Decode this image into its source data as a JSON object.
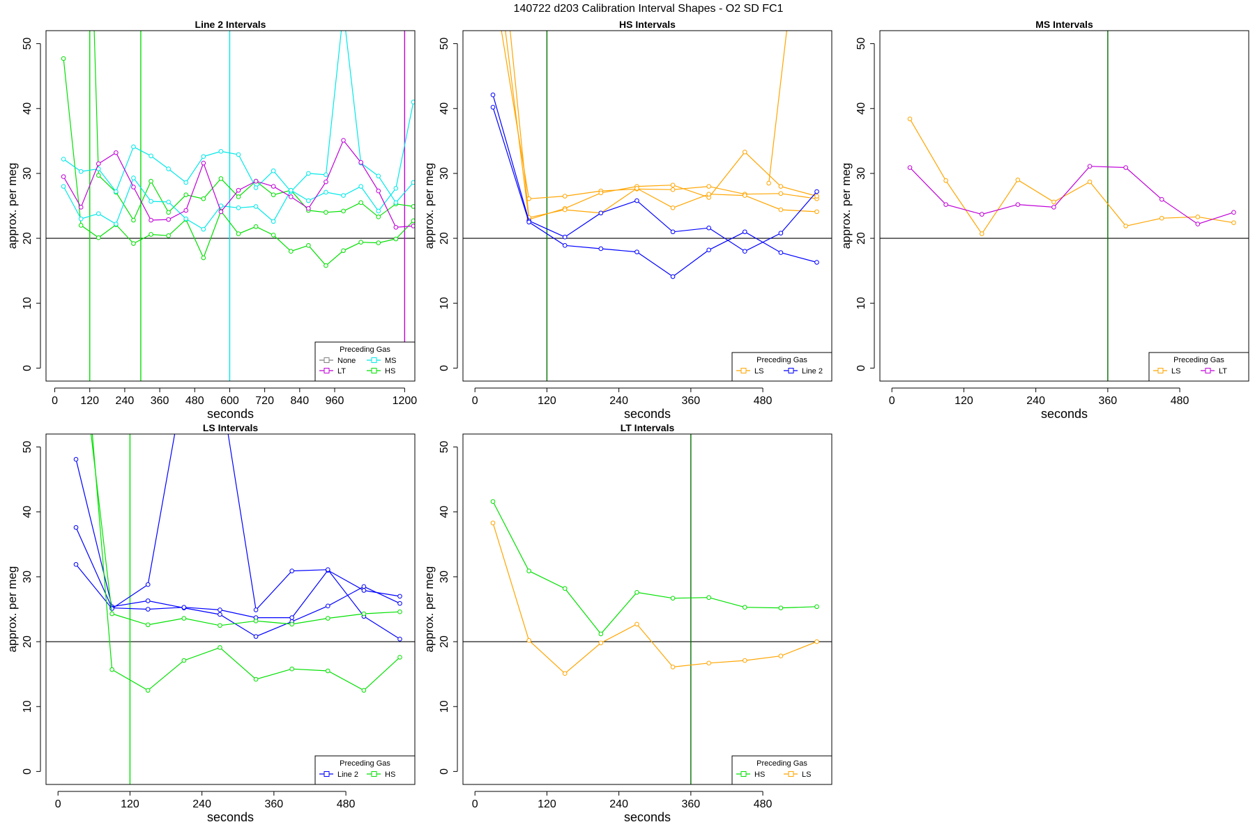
{
  "figure_title": "140722   d203   Calibration Interval Shapes - O2 SD FC1",
  "colors": {
    "Line 2": "#0000ff",
    "HS": "#00e000",
    "MS": "#00e8e8",
    "LS": "#ffa500",
    "LT": "#c000d8",
    "None": "#808080",
    "vline_dark": "#007000",
    "ref": "#000000"
  },
  "chart_data": [
    {
      "type": "line",
      "title": "Line 2 Intervals",
      "xlabel": "seconds",
      "ylabel": "approx. per meg",
      "xlim": [
        -30,
        1235
      ],
      "ylim": [
        -2,
        52
      ],
      "xticks": [
        0,
        120,
        240,
        360,
        480,
        600,
        720,
        840,
        960,
        1200
      ],
      "yticks": [
        0,
        10,
        20,
        30,
        40,
        50
      ],
      "hline": 20,
      "vlines": [
        {
          "x": 120,
          "color": "HS"
        },
        {
          "x": 295,
          "color": "HS"
        },
        {
          "x": 600,
          "color": "MS"
        },
        {
          "x": 1200,
          "color": "LT"
        }
      ],
      "legend": {
        "title": "Preceding Gas",
        "position": "bottom-right",
        "cols": 2,
        "entries": [
          "None",
          "LT",
          "MS",
          "HS"
        ]
      },
      "series": [
        {
          "name": "HS",
          "x": [
            30,
            90,
            150,
            210,
            270,
            330,
            390,
            450,
            510,
            570,
            630,
            690,
            750,
            810,
            870,
            930,
            990,
            1050,
            1110,
            1170,
            1230
          ],
          "y": [
            47.7,
            22,
            20.1,
            22.1,
            19.2,
            20.6,
            20.4,
            22.9,
            17,
            24.2,
            20.7,
            21.8,
            20.5,
            18,
            18.9,
            15.8,
            18.1,
            19.4,
            19.3,
            19.9,
            22.7
          ]
        },
        {
          "name": "HS",
          "x": [
            130,
            150,
            210,
            270,
            330,
            390,
            450,
            510,
            570,
            630,
            690,
            750,
            810,
            870,
            930,
            990,
            1050,
            1110,
            1170,
            1230
          ],
          "y": [
            60,
            29.7,
            27.1,
            22.8,
            28.8,
            24,
            26.7,
            26.1,
            29.2,
            26.4,
            28.8,
            26.7,
            27.4,
            24.3,
            24,
            24.2,
            25.5,
            23.3,
            25.3,
            24.9
          ]
        },
        {
          "name": "MS",
          "x": [
            30,
            90,
            150,
            210,
            270,
            330,
            390,
            450,
            510,
            570,
            630,
            690,
            750,
            810,
            870,
            930,
            990,
            1050,
            1110,
            1170,
            1230
          ],
          "y": [
            32.2,
            30.3,
            30.7,
            27.2,
            34.1,
            32.7,
            30.7,
            28.6,
            32.6,
            33.4,
            32.9,
            27.8,
            30.4,
            27.2,
            30,
            29.8,
            55,
            31.6,
            29.6,
            25.5,
            28.6
          ]
        },
        {
          "name": "MS",
          "x": [
            30,
            90,
            150,
            210,
            270,
            330,
            390,
            450,
            510,
            570,
            630,
            690,
            750,
            810,
            870,
            930,
            990,
            1050,
            1110,
            1170,
            1230
          ],
          "y": [
            28,
            23,
            23.8,
            22.2,
            29.3,
            25.7,
            25.6,
            23,
            21.4,
            25,
            24.7,
            24.9,
            22.6,
            27.4,
            25.8,
            27.1,
            26.6,
            28,
            24.2,
            27.7,
            41
          ]
        },
        {
          "name": "LT",
          "x": [
            30,
            90,
            150,
            210,
            270,
            330,
            390,
            450,
            510,
            570,
            630,
            690,
            750,
            810,
            870,
            930,
            990,
            1050,
            1110,
            1170,
            1230
          ],
          "y": [
            29.5,
            24.8,
            31.5,
            33.2,
            27.9,
            22.8,
            22.9,
            24.3,
            31.6,
            24.1,
            27.4,
            28.8,
            28,
            26.4,
            24.6,
            28.7,
            35.1,
            31.7,
            27.3,
            21.7,
            21.9
          ]
        }
      ]
    },
    {
      "type": "line",
      "title": "HS Intervals",
      "xlabel": "seconds",
      "ylabel": "approx. per meg",
      "xlim": [
        -20,
        595
      ],
      "ylim": [
        -2,
        52
      ],
      "xticks": [
        0,
        120,
        240,
        360,
        480
      ],
      "yticks": [
        0,
        10,
        20,
        30,
        40,
        50
      ],
      "hline": 20,
      "vlines": [
        {
          "x": 120,
          "color": "vline_dark"
        }
      ],
      "legend": {
        "title": "Preceding Gas",
        "position": "bottom-right",
        "cols": 2,
        "entries": [
          "LS",
          "Line 2"
        ]
      },
      "series": [
        {
          "name": "LS",
          "x": [
            30,
            90,
            150,
            210,
            270,
            330,
            390,
            450,
            510,
            570
          ],
          "y": [
            60,
            26.1,
            26.5,
            27.3,
            27.6,
            27.5,
            28,
            26.8,
            26.9,
            26.1
          ]
        },
        {
          "name": "LS",
          "x": [
            40,
            90,
            150,
            210,
            270,
            330,
            390,
            450,
            510,
            570
          ],
          "y": [
            60,
            22.9,
            24.6,
            27,
            28,
            28.2,
            26.3,
            33.3,
            28,
            26.5
          ]
        },
        {
          "name": "LS",
          "x": [
            50,
            90,
            150,
            210,
            270,
            330,
            390,
            450,
            510,
            570
          ],
          "y": [
            60,
            23.2,
            24.4,
            23.9,
            27.7,
            24.7,
            26.8,
            26.6,
            24.4,
            24.1
          ]
        },
        {
          "name": "LS",
          "x": [
            490,
            530
          ],
          "y": [
            28.5,
            60
          ]
        },
        {
          "name": "Line 2",
          "x": [
            30,
            90,
            150,
            210,
            270,
            330,
            390,
            450,
            510,
            570
          ],
          "y": [
            42.1,
            22.7,
            20.2,
            23.9,
            25.8,
            21,
            21.6,
            18,
            20.8,
            27.2
          ]
        },
        {
          "name": "Line 2",
          "x": [
            30,
            90,
            150,
            210,
            270,
            330,
            390,
            450,
            510,
            570
          ],
          "y": [
            40.2,
            22.5,
            18.9,
            18.4,
            17.9,
            14.1,
            18.2,
            21,
            17.8,
            16.3
          ]
        }
      ]
    },
    {
      "type": "line",
      "title": "MS Intervals",
      "xlabel": "seconds",
      "ylabel": "approx. per meg",
      "xlim": [
        -20,
        595
      ],
      "ylim": [
        -2,
        52
      ],
      "xticks": [
        0,
        120,
        240,
        360,
        480
      ],
      "yticks": [
        0,
        10,
        20,
        30,
        40,
        50
      ],
      "hline": 20,
      "vlines": [
        {
          "x": 360,
          "color": "vline_dark"
        }
      ],
      "legend": {
        "title": "Preceding Gas",
        "position": "bottom-right",
        "cols": 2,
        "entries": [
          "LS",
          "LT"
        ]
      },
      "series": [
        {
          "name": "LS",
          "x": [
            30,
            90,
            150,
            210,
            270,
            330,
            390,
            450,
            510,
            570
          ],
          "y": [
            38.4,
            28.9,
            20.7,
            29,
            25.6,
            28.7,
            21.9,
            23.1,
            23.3,
            22.4
          ]
        },
        {
          "name": "LT",
          "x": [
            30,
            90,
            150,
            210,
            270,
            330,
            390,
            450,
            510,
            570
          ],
          "y": [
            30.9,
            25.2,
            23.7,
            25.2,
            24.8,
            31.1,
            30.9,
            26,
            22.2,
            24
          ]
        }
      ]
    },
    {
      "type": "line",
      "title": "LS Intervals",
      "xlabel": "seconds",
      "ylabel": "approx. per meg",
      "xlim": [
        -20,
        595
      ],
      "ylim": [
        -2,
        52
      ],
      "xticks": [
        0,
        120,
        240,
        360,
        480
      ],
      "yticks": [
        0,
        10,
        20,
        30,
        40,
        50
      ],
      "hline": 20,
      "vlines": [
        {
          "x": 120,
          "color": "HS"
        }
      ],
      "legend": {
        "title": "Preceding Gas",
        "position": "bottom-right",
        "cols": 2,
        "entries": [
          "Line 2",
          "HS"
        ]
      },
      "series": [
        {
          "name": "Line 2",
          "x": [
            30,
            90,
            150,
            210,
            270,
            330,
            390,
            450,
            510,
            570
          ],
          "y": [
            48.1,
            25.4,
            26.3,
            25.2,
            24.2,
            20.8,
            23.1,
            25.5,
            28.5,
            25.9
          ]
        },
        {
          "name": "Line 2",
          "x": [
            30,
            90,
            150,
            210,
            270,
            330,
            390,
            450,
            510,
            570
          ],
          "y": [
            37.6,
            25.2,
            25,
            25.3,
            24.9,
            23.7,
            23.7,
            31,
            27.9,
            27
          ]
        },
        {
          "name": "Line 2",
          "x": [
            30,
            90,
            150,
            210,
            270,
            330,
            390,
            450,
            510,
            570
          ],
          "y": [
            31.9,
            25.1,
            28.8,
            60,
            60,
            24.9,
            30.9,
            31.1,
            23.9,
            20.4
          ]
        },
        {
          "name": "HS",
          "x": [
            45,
            90,
            150,
            210,
            270,
            330,
            390,
            450,
            510,
            570
          ],
          "y": [
            60,
            24.3,
            22.6,
            23.6,
            22.5,
            23.2,
            22.7,
            23.6,
            24.3,
            24.6
          ]
        },
        {
          "name": "HS",
          "x": [
            50,
            90,
            150,
            210,
            270,
            330,
            390,
            450,
            510,
            570
          ],
          "y": [
            60,
            15.7,
            12.5,
            17.1,
            19.1,
            14.2,
            15.8,
            15.5,
            12.5,
            17.6
          ]
        }
      ]
    },
    {
      "type": "line",
      "title": "LT Intervals",
      "xlabel": "seconds",
      "ylabel": "approx. per meg",
      "xlim": [
        -20,
        595
      ],
      "ylim": [
        -2,
        52
      ],
      "xticks": [
        0,
        120,
        240,
        360,
        480
      ],
      "yticks": [
        0,
        10,
        20,
        30,
        40,
        50
      ],
      "hline": 20,
      "vlines": [
        {
          "x": 360,
          "color": "vline_dark"
        }
      ],
      "legend": {
        "title": "Preceding Gas",
        "position": "bottom-right",
        "cols": 2,
        "entries": [
          "HS",
          "LS"
        ]
      },
      "series": [
        {
          "name": "HS",
          "x": [
            30,
            90,
            150,
            210,
            270,
            330,
            390,
            450,
            510,
            570
          ],
          "y": [
            41.6,
            30.9,
            28.2,
            21.2,
            27.6,
            26.7,
            26.8,
            25.3,
            25.2,
            25.4
          ]
        },
        {
          "name": "LS",
          "x": [
            30,
            90,
            150,
            210,
            270,
            330,
            390,
            450,
            510,
            570
          ],
          "y": [
            38.3,
            20.2,
            15.1,
            19.8,
            22.7,
            16.1,
            16.7,
            17.1,
            17.8,
            20
          ]
        }
      ]
    }
  ]
}
